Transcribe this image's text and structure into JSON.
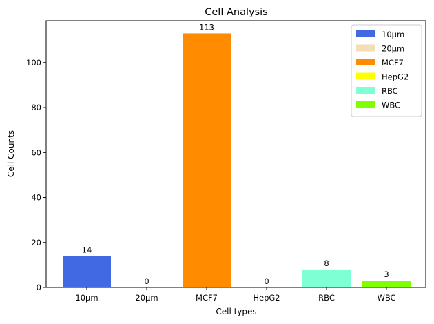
{
  "chart_data": {
    "type": "bar",
    "title": "Cell Analysis",
    "xlabel": "Cell types",
    "ylabel": "Cell Counts",
    "categories": [
      "10µm",
      "20µm",
      "MCF7",
      "HepG2",
      "RBC",
      "WBC"
    ],
    "values": [
      14,
      0,
      113,
      0,
      8,
      3
    ],
    "data_labels": [
      "14",
      "0",
      "113",
      "0",
      "8",
      "3"
    ],
    "colors": [
      "#4169e1",
      "#f5deb3",
      "#ff8c00",
      "#ffff00",
      "#7fffd4",
      "#7fff00"
    ],
    "ylim": [
      0,
      118.65
    ],
    "yticks": [
      0,
      20,
      40,
      60,
      80,
      100
    ],
    "grid": false,
    "legend": {
      "position": "top-right",
      "entries": [
        "10µm",
        "20µm",
        "MCF7",
        "HepG2",
        "RBC",
        "WBC"
      ]
    }
  }
}
